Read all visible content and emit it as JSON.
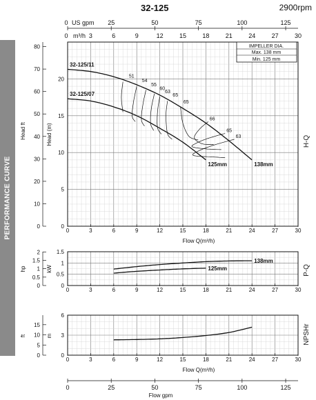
{
  "header": {
    "title": "32-125",
    "rpm": "2900rpm"
  },
  "sidebar": {
    "label": "PERFORMANCE CURVE"
  },
  "chart_data": [
    {
      "type": "line",
      "id": "hq",
      "title": "H-Q",
      "xlabel": "Flow Q(m³/h)",
      "ylabel_left": "Head ft",
      "ylabel_right": "Head (m)",
      "xlim": [
        0,
        30
      ],
      "ylim": [
        0,
        25
      ],
      "x_ticks": [
        0,
        3,
        6,
        9,
        12,
        15,
        18,
        21,
        24,
        27,
        30
      ],
      "y_ticks": [
        5,
        10,
        15,
        20
      ],
      "ft_ticks": [
        0,
        10,
        20,
        30,
        40,
        50,
        60,
        70,
        80
      ],
      "top_axis_gpm": {
        "label": "US gpm",
        "ticks": [
          0,
          25,
          50,
          75,
          100,
          125
        ]
      },
      "top_axis_m3h": {
        "label": "m³/h",
        "ticks": [
          0,
          3,
          6,
          9,
          12,
          15,
          18,
          21,
          24,
          27,
          30
        ]
      },
      "legend": {
        "title": "IMPELLER DIA.",
        "max": "Max.  138 mm",
        "min": "Min.   125 mm"
      },
      "series": [
        {
          "name": "32-125/11",
          "end_label": "138mm",
          "x": [
            0,
            3,
            6,
            9,
            12,
            15,
            18,
            21,
            24
          ],
          "y": [
            21.3,
            21.0,
            20.3,
            19.2,
            17.8,
            16.0,
            14.0,
            11.6,
            9.0
          ]
        },
        {
          "name": "32-125/07",
          "end_label": "125mm",
          "x": [
            0,
            3,
            6,
            9,
            12,
            15,
            18
          ],
          "y": [
            17.3,
            17.0,
            16.2,
            15.0,
            13.3,
            11.4,
            9.0
          ]
        }
      ],
      "efficiency_labels": [
        "51",
        "54",
        "55",
        "60",
        "63",
        "65",
        "65",
        "66",
        "65",
        "63"
      ]
    },
    {
      "type": "line",
      "id": "pq",
      "title": "P-Q",
      "xlabel": "",
      "ylabel_left": "hp",
      "ylabel_right": "kW",
      "xlim": [
        0,
        30
      ],
      "ylim": [
        0,
        1.5
      ],
      "x_ticks": [
        0,
        3,
        6,
        9,
        12,
        15,
        18,
        21,
        24,
        27,
        30
      ],
      "y_ticks": [
        0,
        0.5,
        1,
        1.5
      ],
      "hp_ticks": [
        "0",
        "0.5",
        "1",
        "1.5",
        "2"
      ],
      "series": [
        {
          "name": "138mm",
          "x": [
            6,
            9,
            12,
            15,
            18,
            21,
            24
          ],
          "y": [
            0.73,
            0.84,
            0.93,
            1.0,
            1.06,
            1.09,
            1.1
          ]
        },
        {
          "name": "125mm",
          "x": [
            6,
            9,
            12,
            15,
            18
          ],
          "y": [
            0.55,
            0.63,
            0.69,
            0.74,
            0.77
          ]
        }
      ]
    },
    {
      "type": "line",
      "id": "npsh",
      "title": "NPSHr",
      "xlabel": "Flow Q(m³/h)",
      "ylabel_left": "ft",
      "ylabel_right": "m",
      "xlim": [
        0,
        30
      ],
      "ylim": [
        0,
        6
      ],
      "x_ticks": [
        0,
        3,
        6,
        9,
        12,
        15,
        18,
        21,
        24,
        27,
        30
      ],
      "y_ticks": [
        0,
        3,
        6
      ],
      "ft_ticks": [
        "0",
        "5",
        "10",
        "15"
      ],
      "series": [
        {
          "name": "",
          "x": [
            6,
            9,
            12,
            15,
            18,
            21,
            24
          ],
          "y": [
            2.3,
            2.35,
            2.45,
            2.65,
            2.95,
            3.4,
            4.2
          ]
        }
      ]
    },
    {
      "type": "axis",
      "id": "bottom-gpm",
      "xlabel": "Flow  gpm",
      "ticks": [
        0,
        25,
        50,
        75,
        100,
        125
      ]
    }
  ]
}
